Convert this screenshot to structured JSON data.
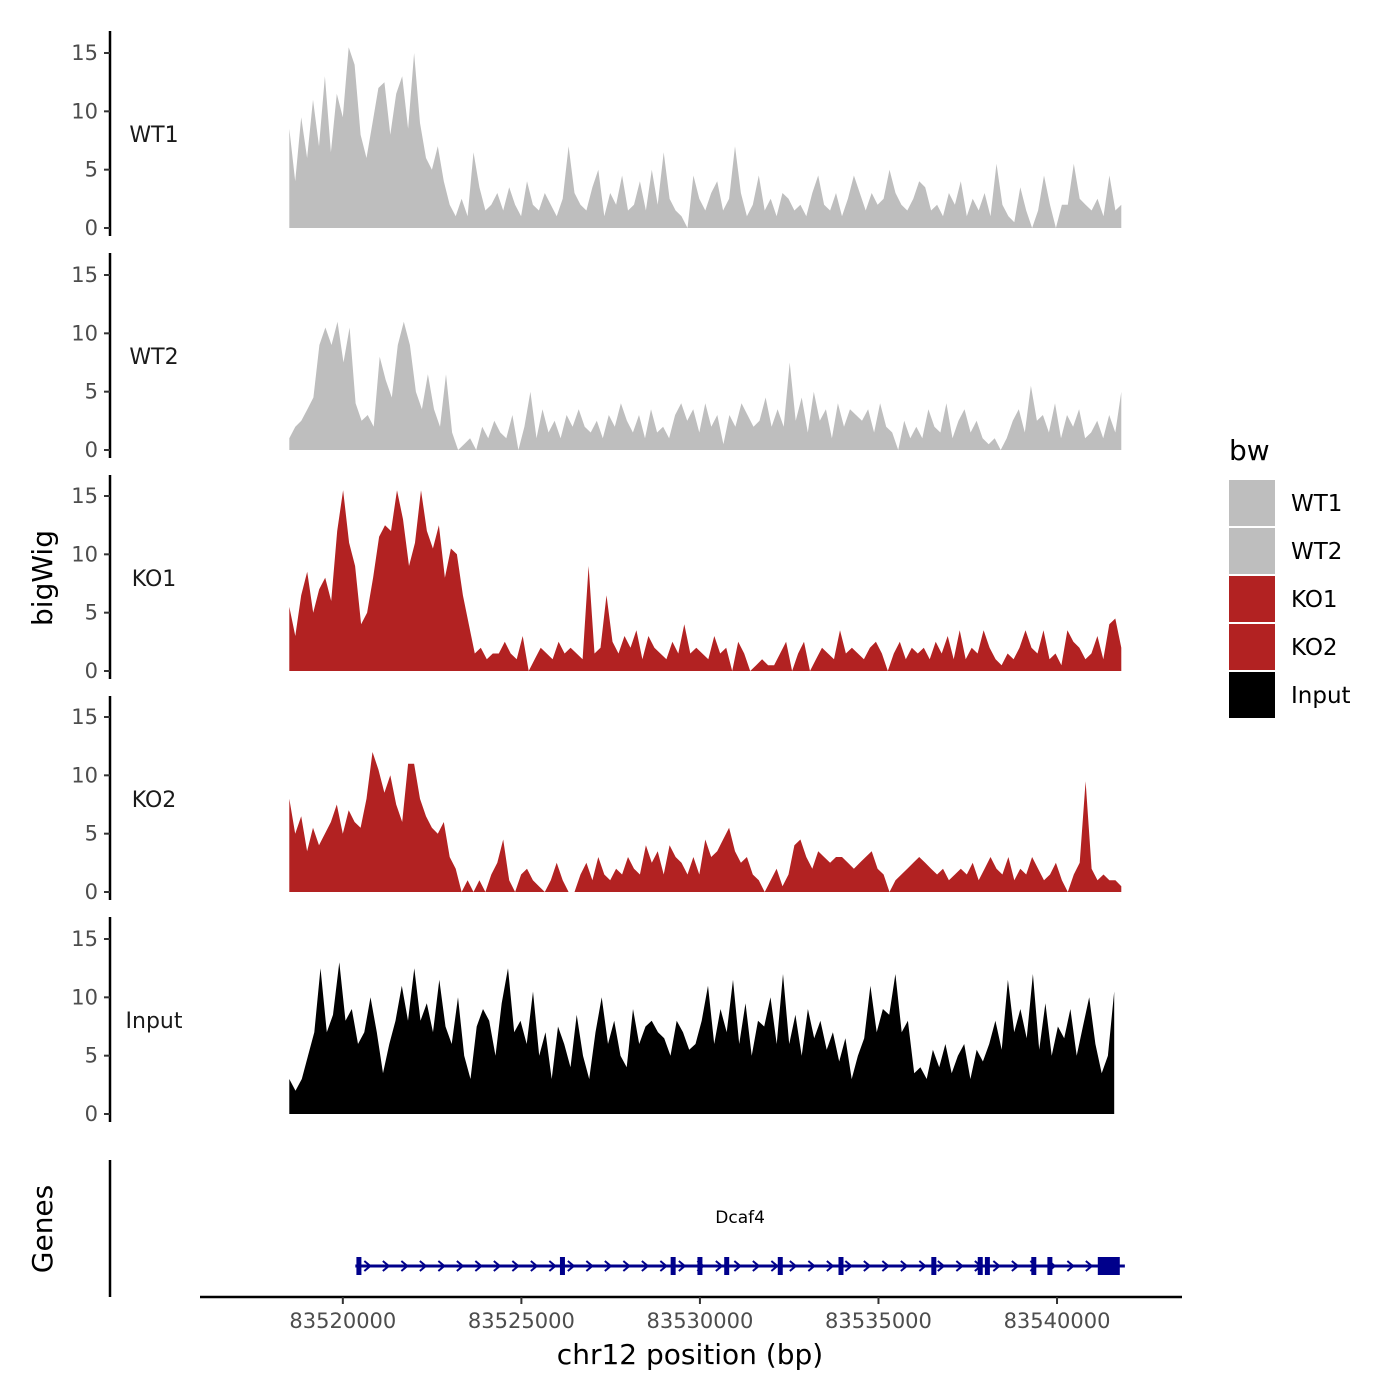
{
  "chart_data": {
    "type": "area",
    "title": "",
    "ylabel": "bigWig",
    "genes_ylabel": "Genes",
    "xlabel": "chr12 position (bp)",
    "xlim": [
      83516000,
      83543500
    ],
    "x_ticks": [
      83520000,
      83525000,
      83530000,
      83535000,
      83540000
    ],
    "x_tick_labels": [
      "83520000",
      "83525000",
      "83530000",
      "83535000",
      "83540000"
    ],
    "ylim": [
      0,
      16
    ],
    "y_ticks": [
      0,
      5,
      10,
      15
    ],
    "y_tick_labels": [
      "0",
      "5",
      "10",
      "15"
    ],
    "grid": false,
    "legend": {
      "title": "bw",
      "position": "right",
      "entries": [
        {
          "label": "WT1",
          "color": "#bebebe"
        },
        {
          "label": "WT2",
          "color": "#bebebe"
        },
        {
          "label": "KO1",
          "color": "#b22222"
        },
        {
          "label": "KO2",
          "color": "#b22222"
        },
        {
          "label": "Input",
          "color": "#000000"
        }
      ]
    },
    "series": [
      {
        "name": "WT1",
        "color": "#bebebe",
        "x_start": 83518500,
        "x_end": 83541800,
        "values": [
          8.5,
          4,
          9.5,
          6,
          11,
          7,
          13,
          6.5,
          11.5,
          9.5,
          15.5,
          14,
          8,
          6,
          9,
          12,
          12.5,
          8,
          11.5,
          13,
          8.5,
          15,
          9,
          6,
          5,
          7,
          4,
          2,
          1,
          2.5,
          1,
          6.5,
          3.5,
          1.5,
          2,
          3,
          1.5,
          3.5,
          2,
          1,
          4,
          2,
          1.5,
          3,
          2,
          1,
          2.5,
          7,
          3,
          2,
          1.5,
          3.5,
          5,
          1,
          3,
          2,
          4.5,
          1.5,
          2,
          4,
          1.5,
          5,
          2,
          6.5,
          2.5,
          1.5,
          1,
          0,
          4.5,
          2.5,
          1.5,
          3,
          4,
          1.5,
          2.5,
          7,
          3,
          1,
          2,
          4.5,
          1.5,
          2.5,
          1,
          3,
          2.5,
          1.5,
          2,
          1,
          3,
          4.5,
          2,
          1.5,
          3,
          1,
          2.5,
          4.5,
          3,
          1.5,
          3,
          2,
          2.5,
          5,
          3,
          2,
          1.5,
          2.5,
          4,
          3.5,
          1.5,
          2,
          1,
          3,
          2,
          4,
          1,
          2.5,
          1.5,
          3,
          1,
          5.5,
          2,
          1,
          0.5,
          3.5,
          1.5,
          0,
          1.5,
          4.5,
          2,
          0,
          2,
          2,
          5.5,
          2.5,
          2,
          1.5,
          2.5,
          1,
          4.5,
          1.5,
          2
        ]
      },
      {
        "name": "WT2",
        "color": "#bebebe",
        "x_start": 83518500,
        "x_end": 83541800,
        "values": [
          1,
          2,
          2.5,
          3.5,
          4.5,
          9,
          10.5,
          9,
          11,
          7.5,
          10.5,
          4,
          2.5,
          3,
          2,
          8,
          6,
          4.5,
          9,
          11,
          9,
          5,
          3.5,
          6.5,
          3.5,
          2,
          6.5,
          1.5,
          0,
          0.5,
          1,
          0,
          2,
          1,
          2.5,
          1.5,
          1,
          3,
          0,
          2,
          5,
          1,
          3.5,
          1.5,
          2.5,
          1,
          3,
          2,
          3.5,
          2,
          1.5,
          2.5,
          1,
          3,
          2,
          4,
          2.5,
          1.5,
          3,
          1,
          3.5,
          1.5,
          2,
          1,
          3,
          4,
          2.5,
          3.5,
          1.5,
          4,
          2,
          3,
          0.5,
          3,
          2,
          4,
          3,
          2,
          2.5,
          4.5,
          2,
          3.5,
          2,
          7.5,
          2.5,
          4.5,
          1.5,
          5,
          2.5,
          3.5,
          1,
          4,
          2,
          3.5,
          3,
          2.5,
          3.5,
          1.5,
          4,
          2,
          1.5,
          0,
          2.5,
          1,
          2,
          1,
          3.5,
          2,
          1.5,
          4,
          1,
          2.5,
          3.5,
          1.5,
          2.5,
          1,
          0.5,
          1,
          0,
          1,
          2.5,
          3.5,
          1.5,
          5.5,
          2.5,
          3,
          1.5,
          4,
          1,
          3,
          2,
          3.5,
          1,
          1.5,
          2.5,
          1,
          3,
          1.5,
          5
        ]
      },
      {
        "name": "KO1",
        "color": "#b22222",
        "x_start": 83518500,
        "x_end": 83541800,
        "values": [
          5.5,
          3,
          6.5,
          8.5,
          5,
          7,
          8,
          6,
          12,
          15.5,
          11,
          9,
          4,
          5,
          8,
          11.5,
          12.5,
          12,
          15.5,
          13,
          9,
          11,
          15.5,
          12,
          10.5,
          12.5,
          8,
          10.5,
          10,
          6.5,
          4,
          1.5,
          2,
          1,
          1.5,
          1.5,
          2.5,
          1.5,
          1,
          3,
          0,
          1,
          2,
          1.5,
          1,
          2.5,
          1.5,
          2,
          1.5,
          1,
          9,
          1.5,
          2,
          6.5,
          2.5,
          1.5,
          3,
          2,
          3.5,
          1,
          3,
          2,
          1.5,
          1,
          2.5,
          1.5,
          4,
          1.5,
          2,
          1.5,
          1,
          3,
          1.5,
          2,
          0,
          2.5,
          1.5,
          0,
          0.5,
          1,
          0.5,
          0.5,
          1.5,
          2.5,
          0,
          1.5,
          2.5,
          0,
          1,
          2,
          1.5,
          1,
          3.5,
          1.5,
          2,
          1.5,
          1,
          2,
          2.5,
          1.5,
          0,
          1.5,
          2.5,
          1,
          2,
          1.5,
          2,
          1,
          2.5,
          1.5,
          3,
          1,
          3.5,
          1,
          2,
          1.5,
          3.5,
          2,
          1,
          0.5,
          1.5,
          1,
          2,
          3.5,
          2,
          1.5,
          3.5,
          1,
          1.5,
          0.5,
          3.5,
          2.5,
          2,
          1,
          1.5,
          3,
          1,
          4,
          4.5,
          2
        ]
      },
      {
        "name": "KO2",
        "color": "#b22222",
        "x_start": 83518500,
        "x_end": 83541800,
        "values": [
          8,
          5,
          6.5,
          3.5,
          5.5,
          4,
          5,
          6,
          7.5,
          5,
          7,
          6,
          5.5,
          8,
          12,
          10.5,
          8.5,
          10,
          7.5,
          6,
          11,
          11,
          8,
          6.5,
          5.5,
          5,
          6,
          3,
          2,
          0,
          1,
          0,
          1,
          0,
          1.5,
          2.5,
          4.5,
          1,
          0,
          1.5,
          2,
          1,
          0.5,
          0,
          1,
          2.5,
          1,
          0,
          0,
          1.5,
          2.5,
          1,
          3,
          1.5,
          1,
          2,
          1.5,
          3,
          2,
          1.5,
          4,
          2.5,
          3.5,
          1.5,
          4,
          3,
          2.5,
          1.5,
          3,
          1.5,
          4.5,
          3,
          3.5,
          4.5,
          5.5,
          3.5,
          2.5,
          3,
          1.5,
          1,
          0,
          1,
          2,
          0.5,
          1.5,
          4,
          4.5,
          3,
          2,
          3.5,
          3,
          2.5,
          3,
          3,
          2.5,
          2,
          2.5,
          3,
          3.5,
          2,
          1.5,
          0,
          1,
          1.5,
          2,
          2.5,
          3,
          2.5,
          2,
          1.5,
          2,
          1,
          1.5,
          2,
          1.5,
          2.5,
          1,
          2,
          3,
          2,
          1.5,
          3,
          1,
          2,
          1.5,
          3,
          2,
          1,
          1.5,
          2.5,
          1,
          0,
          1.5,
          2.5,
          9.5,
          2,
          1,
          1.5,
          1,
          1,
          0.5
        ]
      },
      {
        "name": "Input",
        "color": "#000000",
        "x_start": 83518500,
        "x_end": 83541600,
        "values": [
          3,
          2,
          3,
          5,
          7,
          12.5,
          7,
          8.5,
          13,
          8,
          9,
          6,
          7,
          10,
          7,
          3.5,
          6,
          8,
          11,
          8,
          12.5,
          8,
          9.5,
          7,
          11.5,
          7.5,
          6,
          10,
          5,
          3,
          7.5,
          9,
          8,
          5,
          9.5,
          12.5,
          7,
          8,
          6,
          10.5,
          5,
          7,
          3,
          7.5,
          6,
          4,
          8.5,
          5,
          3,
          7,
          10,
          6,
          8,
          5,
          4,
          9,
          6,
          7.5,
          8,
          7,
          6.5,
          5,
          8,
          7,
          5.5,
          6,
          8,
          11,
          6,
          9,
          7,
          11.5,
          6,
          9.5,
          5,
          8,
          7.5,
          10,
          6,
          12,
          6,
          8.5,
          5,
          9,
          6.5,
          8,
          5.5,
          7,
          4.5,
          6.5,
          3,
          5,
          6.5,
          11,
          7,
          9,
          8.5,
          12,
          7,
          8,
          3.5,
          4,
          3,
          5.5,
          4,
          6,
          3.5,
          5,
          6,
          3,
          5.5,
          4.5,
          6,
          8,
          5.5,
          11.5,
          7,
          9,
          6.5,
          12,
          5.5,
          9.5,
          5,
          7.5,
          6.5,
          9,
          5,
          7.5,
          10,
          6,
          3.5,
          5,
          10.5
        ]
      }
    ],
    "genes": [
      {
        "name": "Dcaf4",
        "start": 83520350,
        "end": 83541900,
        "strand": "+",
        "exons": [
          83520450,
          83526150,
          83529250,
          83530000,
          83530750,
          83532250,
          83533950,
          83536550,
          83537850,
          83538050,
          83539350,
          83539800,
          83541450
        ]
      }
    ]
  }
}
